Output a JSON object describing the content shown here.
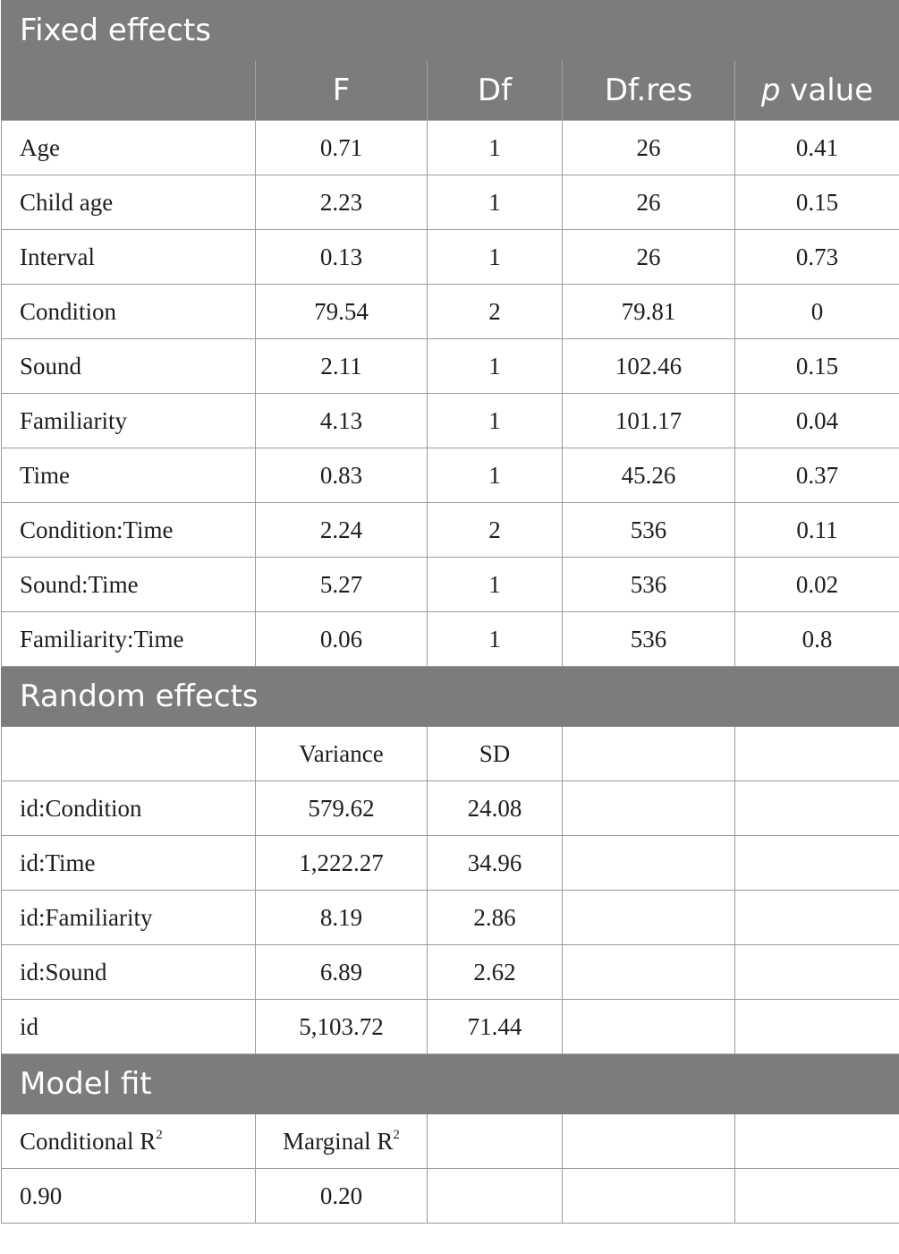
{
  "fixed": {
    "title": "Fixed effects",
    "headers": [
      "F",
      "Df",
      "Df.res",
      "p",
      "value"
    ],
    "rows": [
      [
        "Age",
        "0.71",
        "1",
        "26",
        "0.41"
      ],
      [
        "Child age",
        "2.23",
        "1",
        "26",
        "0.15"
      ],
      [
        "Interval",
        "0.13",
        "1",
        "26",
        "0.73"
      ],
      [
        "Condition",
        "79.54",
        "2",
        "79.81",
        "0"
      ],
      [
        "Sound",
        "2.11",
        "1",
        "102.46",
        "0.15"
      ],
      [
        "Familiarity",
        "4.13",
        "1",
        "101.17",
        "0.04"
      ],
      [
        "Time",
        "0.83",
        "1",
        "45.26",
        "0.37"
      ],
      [
        "Condition:Time",
        "2.24",
        "2",
        "536",
        "0.11"
      ],
      [
        "Sound:Time",
        "5.27",
        "1",
        "536",
        "0.02"
      ],
      [
        "Familiarity:Time",
        "0.06",
        "1",
        "536",
        "0.8"
      ]
    ]
  },
  "random": {
    "title": "Random effects",
    "headers": [
      "Variance",
      "SD"
    ],
    "rows": [
      [
        "id:Condition",
        "579.62",
        "24.08"
      ],
      [
        "id:Time",
        "1,222.27",
        "34.96"
      ],
      [
        "id:Familiarity",
        "8.19",
        "2.86"
      ],
      [
        "id:Sound",
        "6.89",
        "2.62"
      ],
      [
        "id",
        "5,103.72",
        "71.44"
      ]
    ]
  },
  "model_fit": {
    "title": "Model fit",
    "header_1": "Conditional R",
    "header_2": "Marginal R",
    "sup": "2",
    "values": [
      "0.90",
      "0.20"
    ]
  }
}
